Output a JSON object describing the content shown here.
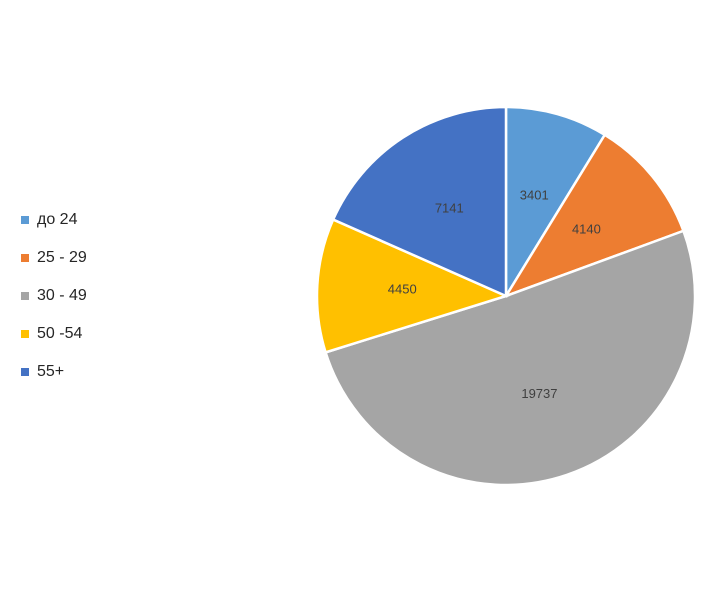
{
  "chart_data": {
    "type": "pie",
    "categories": [
      "до 24",
      "25 - 29",
      "30 - 49",
      "50 -54",
      "55+"
    ],
    "values": [
      3401,
      4140,
      19737,
      4450,
      7141
    ],
    "colors": [
      "#5b9bd5",
      "#ed7d31",
      "#a5a5a5",
      "#ffc000",
      "#4472c4"
    ],
    "legend": "left"
  }
}
